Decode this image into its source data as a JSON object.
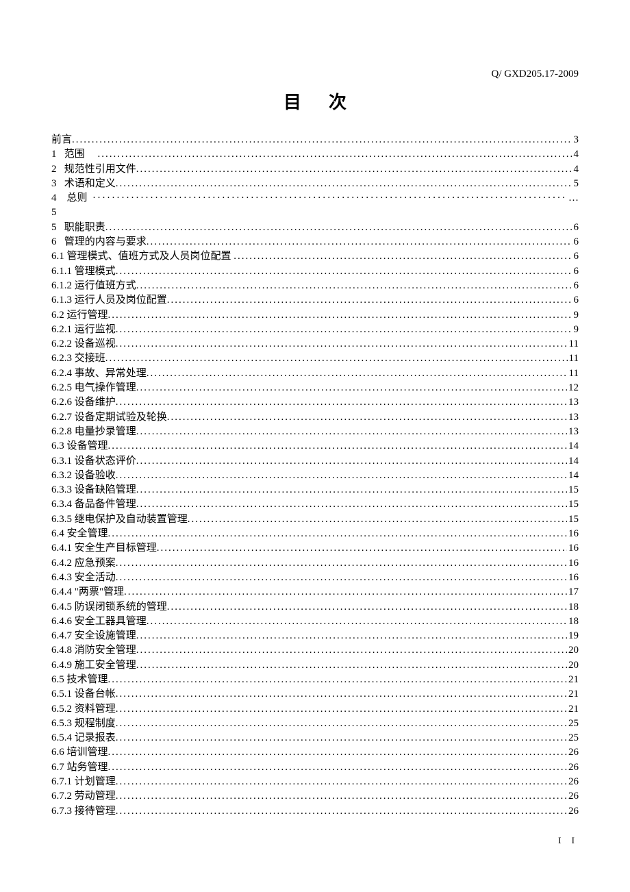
{
  "doc_code": "Q/ GXD205.17-2009",
  "title": "目次",
  "footer": "I  I",
  "toc": [
    {
      "label": "前言",
      "page": "3"
    },
    {
      "label": "1   范围     ",
      "page": "4"
    },
    {
      "label": "2   规范性引用文件",
      "page": "4"
    },
    {
      "label": "3   术语和定义",
      "page": "5"
    },
    {
      "label": "4    总则  ",
      "page": "…",
      "dotchar": "·"
    },
    {
      "label": "5",
      "page": ""
    },
    {
      "label": "5   职能职责",
      "page": "6"
    },
    {
      "label": "6   管理的内容与要求",
      "page": "6"
    },
    {
      "label": "6.1 管理模式、值班方式及人员岗位配置 ",
      "page": "6"
    },
    {
      "label": "6.1.1 管理模式",
      "page": "6"
    },
    {
      "label": "6.1.2 运行值班方式",
      "page": "6"
    },
    {
      "label": "6.1.3 运行人员及岗位配置",
      "page": "6"
    },
    {
      "label": "6.2 运行管理",
      "page": "9"
    },
    {
      "label": "6.2.1 运行监视",
      "page": "9"
    },
    {
      "label": "6.2.2 设备巡视",
      "page": "11"
    },
    {
      "label": "6.2.3 交接班",
      "page": "11"
    },
    {
      "label": "6.2.4 事故、异常处理",
      "page": "11"
    },
    {
      "label": "6.2.5 电气操作管理",
      "page": "12"
    },
    {
      "label": "6.2.6 设备维护",
      "page": "13"
    },
    {
      "label": "6.2.7 设备定期试验及轮换",
      "page": "13"
    },
    {
      "label": "6.2.8 电量抄录管理",
      "page": "13"
    },
    {
      "label": "6.3 设备管理",
      "page": "14"
    },
    {
      "label": "6.3.1 设备状态评价",
      "page": "14"
    },
    {
      "label": "6.3.2 设备验收",
      "page": "14"
    },
    {
      "label": "6.3.3 设备缺陷管理",
      "page": "15"
    },
    {
      "label": "6.3.4 备品备件管理",
      "page": "15"
    },
    {
      "label": "6.3.5 继电保护及自动装置管理",
      "page": "15"
    },
    {
      "label": "6.4 安全管理",
      "page": "16"
    },
    {
      "label": "6.4.1 安全生产目标管理",
      "page": "16"
    },
    {
      "label": "6.4.2 应急预案",
      "page": "16"
    },
    {
      "label": "6.4.3 安全活动",
      "page": "16"
    },
    {
      "label": "6.4.4 \"两票\"管理",
      "page": "17"
    },
    {
      "label": "6.4.5 防误闭锁系统的管理",
      "page": "18"
    },
    {
      "label": "6.4.6 安全工器具管理",
      "page": "18"
    },
    {
      "label": "6.4.7 安全设施管理",
      "page": "19"
    },
    {
      "label": "6.4.8 消防安全管理",
      "page": "20"
    },
    {
      "label": "6.4.9 施工安全管理",
      "page": "20"
    },
    {
      "label": "6.5 技术管理",
      "page": "21"
    },
    {
      "label": "6.5.1 设备台帐",
      "page": "21"
    },
    {
      "label": "6.5.2 资料管理",
      "page": "21"
    },
    {
      "label": "6.5.3 规程制度",
      "page": "25"
    },
    {
      "label": "6.5.4 记录报表",
      "page": "25"
    },
    {
      "label": "6.6 培训管理",
      "page": "26"
    },
    {
      "label": "6.7 站务管理",
      "page": "26"
    },
    {
      "label": "6.7.1 计划管理",
      "page": "26"
    },
    {
      "label": "6.7.2 劳动管理",
      "page": "26"
    },
    {
      "label": "6.7.3 接待管理",
      "page": "26"
    }
  ]
}
